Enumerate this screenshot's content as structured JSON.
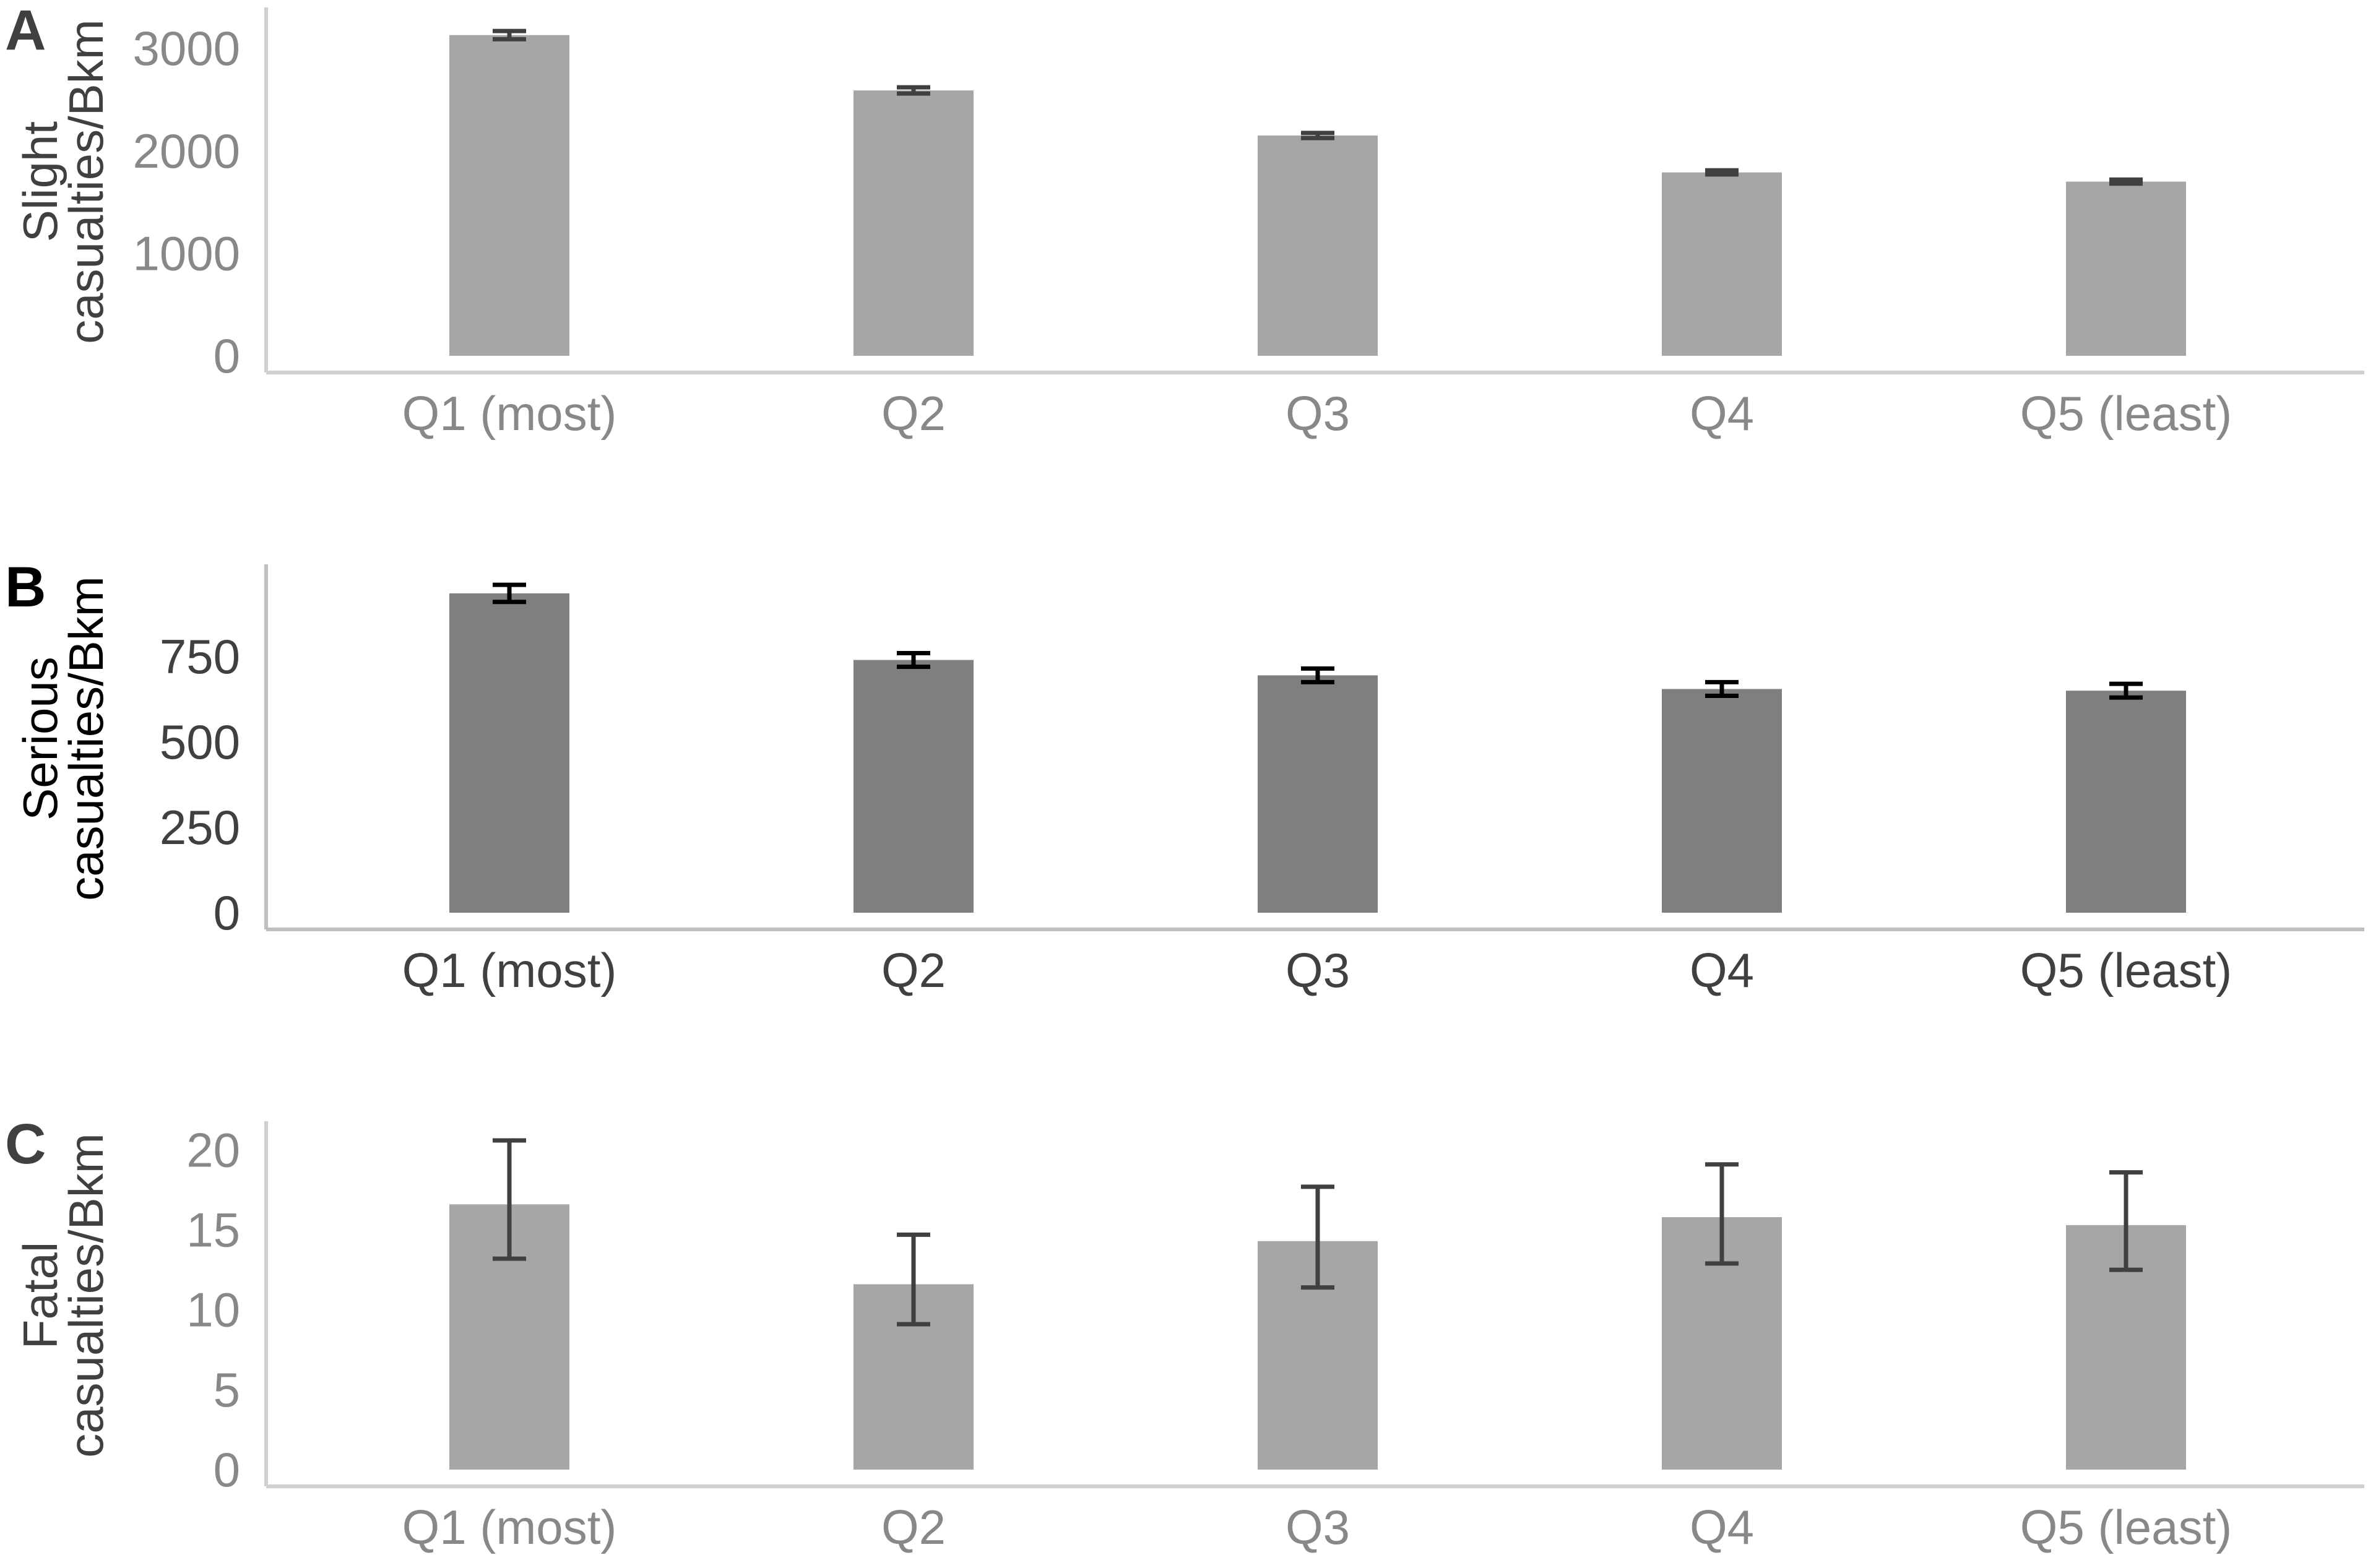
{
  "chart_data": [
    {
      "type": "bar",
      "panel": "A",
      "ylabel": [
        "Slight",
        "casualties/Bkm"
      ],
      "categories": [
        "Q1 (most)",
        "Q2",
        "Q3",
        "Q4",
        "Q5 (least)"
      ],
      "values": [
        3130,
        2590,
        2150,
        1790,
        1700
      ],
      "error_low": [
        3090,
        2560,
        2125,
        1770,
        1680
      ],
      "error_high": [
        3170,
        2620,
        2175,
        1810,
        1720
      ],
      "yticks": [
        0,
        1000,
        2000,
        3000
      ],
      "ylim": [
        0,
        3400
      ],
      "bar_color": "#a6a6a6",
      "error_color": "#404040",
      "text_color": "#888888",
      "letter_color": "#404040",
      "axis_color": "#d0d0d0"
    },
    {
      "type": "bar",
      "panel": "B",
      "ylabel": [
        "Serious",
        "casualties/Bkm"
      ],
      "categories": [
        "Q1 (most)",
        "Q2",
        "Q3",
        "Q4",
        "Q5 (least)"
      ],
      "values": [
        935,
        740,
        695,
        655,
        650
      ],
      "error_low": [
        910,
        720,
        675,
        635,
        630
      ],
      "error_high": [
        960,
        760,
        715,
        675,
        670
      ],
      "yticks": [
        0,
        250,
        500,
        750
      ],
      "ylim": [
        0,
        1020
      ],
      "bar_color": "#7f7f7f",
      "error_color": "#000000",
      "text_color": "#404040",
      "letter_color": "#000000",
      "axis_color": "#bfbfbf"
    },
    {
      "type": "bar",
      "panel": "C",
      "ylabel": [
        "Fatal",
        "casualties/Bkm"
      ],
      "categories": [
        "Q1 (most)",
        "Q2",
        "Q3",
        "Q4",
        "Q5 (least)"
      ],
      "values": [
        16.6,
        11.6,
        14.3,
        15.8,
        15.3
      ],
      "error_low": [
        13.2,
        9.1,
        11.4,
        12.9,
        12.5
      ],
      "error_high": [
        20.6,
        14.7,
        17.7,
        19.1,
        18.6
      ],
      "yticks": [
        0,
        5,
        10,
        15,
        20
      ],
      "ylim": [
        0,
        21.8
      ],
      "bar_color": "#a6a6a6",
      "error_color": "#404040",
      "text_color": "#888888",
      "letter_color": "#404040",
      "axis_color": "#d0d0d0"
    }
  ]
}
